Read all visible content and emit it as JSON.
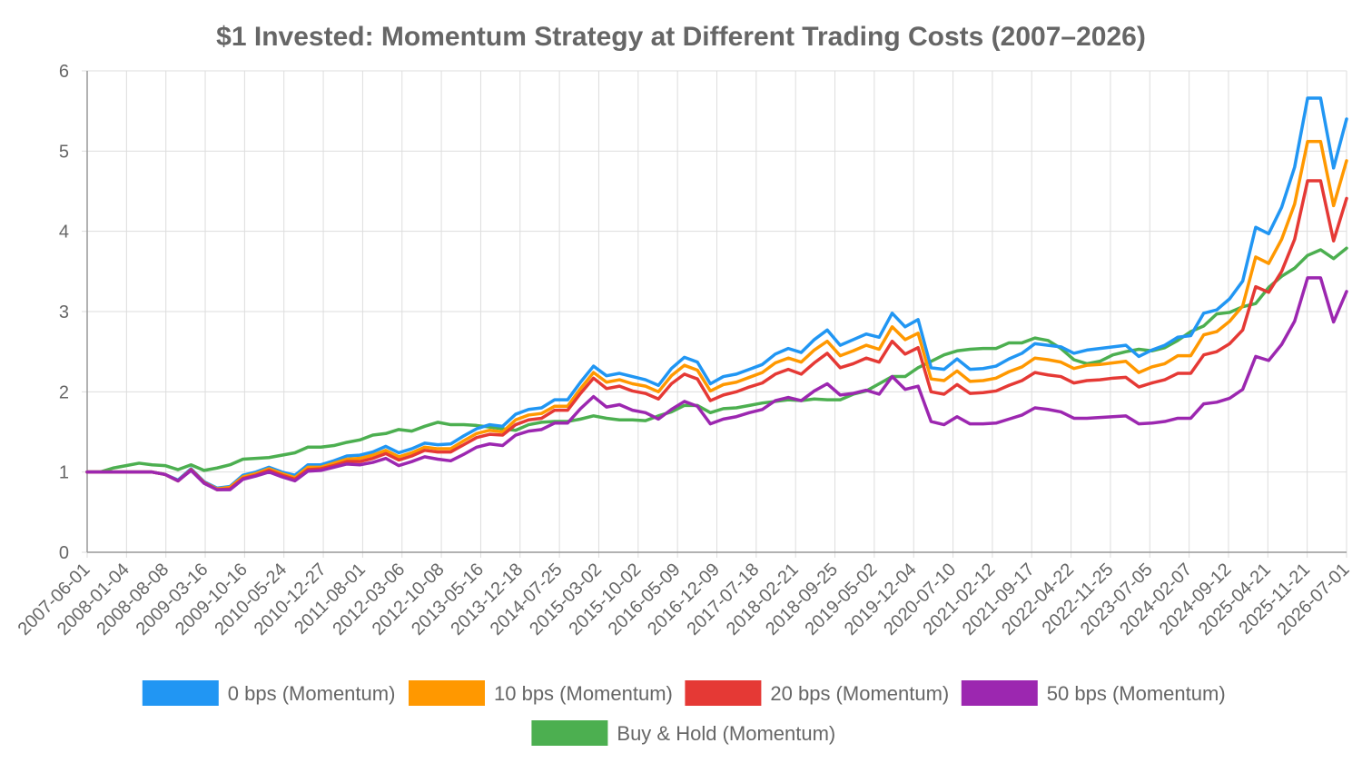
{
  "chart_data": {
    "type": "line",
    "title": "$1 Invested: Momentum Strategy at Different Trading Costs (2007–2026)",
    "xlabel": "",
    "ylabel": "",
    "ylim": [
      0,
      6
    ],
    "yticks": [
      "0",
      "1",
      "2",
      "3",
      "4",
      "5",
      "6"
    ],
    "grid": true,
    "legend_position": "bottom",
    "xlabels": [
      "2007-06-01",
      "2008-01-04",
      "2008-08-08",
      "2009-03-16",
      "2009-10-16",
      "2010-05-24",
      "2010-12-27",
      "2011-08-01",
      "2012-03-06",
      "2012-10-08",
      "2013-05-16",
      "2013-12-18",
      "2014-07-25",
      "2015-03-02",
      "2015-10-02",
      "2016-05-09",
      "2016-12-09",
      "2017-07-18",
      "2018-02-21",
      "2018-09-25",
      "2019-05-02",
      "2019-12-04",
      "2020-07-10",
      "2021-02-12",
      "2021-09-17",
      "2022-04-22",
      "2022-11-25",
      "2023-07-05",
      "2024-02-07",
      "2024-09-12",
      "2025-04-21",
      "2025-11-21",
      "2026-07-01"
    ],
    "series": [
      {
        "name": "0 bps (Momentum)",
        "color": "#2196F3",
        "values": [
          1.0,
          1.0,
          1.0,
          1.0,
          1.0,
          1.0,
          0.97,
          0.9,
          1.04,
          0.88,
          0.8,
          0.82,
          0.96,
          1.0,
          1.06,
          1.0,
          0.96,
          1.09,
          1.09,
          1.14,
          1.2,
          1.21,
          1.25,
          1.32,
          1.24,
          1.29,
          1.36,
          1.34,
          1.35,
          1.45,
          1.54,
          1.59,
          1.57,
          1.72,
          1.78,
          1.8,
          1.9,
          1.9,
          2.12,
          2.32,
          2.2,
          2.23,
          2.19,
          2.15,
          2.08,
          2.29,
          2.43,
          2.37,
          2.1,
          2.19,
          2.22,
          2.28,
          2.34,
          2.47,
          2.54,
          2.49,
          2.65,
          2.77,
          2.58,
          2.65,
          2.72,
          2.68,
          2.98,
          2.81,
          2.9,
          2.3,
          2.28,
          2.41,
          2.28,
          2.29,
          2.32,
          2.41,
          2.48,
          2.6,
          2.58,
          2.56,
          2.48,
          2.52,
          2.54,
          2.56,
          2.58,
          2.44,
          2.52,
          2.58,
          2.68,
          2.7,
          2.98,
          3.02,
          3.16,
          3.38,
          4.05,
          3.97,
          4.3,
          4.8,
          5.66,
          5.66,
          4.79,
          5.4
        ]
      },
      {
        "name": "10 bps (Momentum)",
        "color": "#FF9800",
        "values": [
          1.0,
          1.0,
          1.0,
          1.0,
          1.0,
          1.0,
          0.97,
          0.89,
          1.03,
          0.87,
          0.79,
          0.81,
          0.94,
          0.98,
          1.04,
          0.98,
          0.93,
          1.06,
          1.06,
          1.11,
          1.16,
          1.17,
          1.21,
          1.27,
          1.19,
          1.24,
          1.31,
          1.29,
          1.29,
          1.39,
          1.48,
          1.52,
          1.5,
          1.65,
          1.71,
          1.73,
          1.82,
          1.82,
          2.04,
          2.24,
          2.12,
          2.15,
          2.1,
          2.07,
          2.0,
          2.2,
          2.33,
          2.27,
          2.01,
          2.09,
          2.12,
          2.18,
          2.24,
          2.36,
          2.42,
          2.37,
          2.52,
          2.63,
          2.45,
          2.51,
          2.58,
          2.53,
          2.81,
          2.65,
          2.73,
          2.16,
          2.14,
          2.26,
          2.13,
          2.14,
          2.17,
          2.25,
          2.31,
          2.42,
          2.4,
          2.37,
          2.29,
          2.33,
          2.34,
          2.36,
          2.38,
          2.24,
          2.31,
          2.35,
          2.45,
          2.45,
          2.71,
          2.75,
          2.88,
          3.07,
          3.68,
          3.6,
          3.9,
          4.34,
          5.12,
          5.12,
          4.32,
          4.88
        ]
      },
      {
        "name": "20 bps (Momentum)",
        "color": "#E53935",
        "values": [
          1.0,
          1.0,
          1.0,
          1.0,
          1.0,
          1.0,
          0.97,
          0.89,
          1.03,
          0.87,
          0.78,
          0.79,
          0.92,
          0.96,
          1.02,
          0.96,
          0.91,
          1.03,
          1.04,
          1.08,
          1.13,
          1.13,
          1.17,
          1.23,
          1.15,
          1.2,
          1.27,
          1.25,
          1.25,
          1.34,
          1.43,
          1.47,
          1.46,
          1.59,
          1.65,
          1.67,
          1.77,
          1.77,
          1.98,
          2.17,
          2.04,
          2.07,
          2.01,
          1.98,
          1.91,
          2.1,
          2.22,
          2.16,
          1.89,
          1.96,
          2.0,
          2.06,
          2.11,
          2.22,
          2.28,
          2.22,
          2.36,
          2.48,
          2.3,
          2.35,
          2.42,
          2.37,
          2.63,
          2.47,
          2.55,
          2.0,
          1.97,
          2.09,
          1.98,
          1.99,
          2.01,
          2.08,
          2.14,
          2.24,
          2.21,
          2.19,
          2.11,
          2.14,
          2.15,
          2.17,
          2.18,
          2.06,
          2.11,
          2.15,
          2.23,
          2.23,
          2.46,
          2.5,
          2.6,
          2.77,
          3.31,
          3.24,
          3.5,
          3.9,
          4.63,
          4.63,
          3.88,
          4.41
        ]
      },
      {
        "name": "50 bps (Momentum)",
        "color": "#9C27B0",
        "values": [
          1.0,
          1.0,
          1.0,
          1.0,
          1.0,
          1.0,
          0.97,
          0.89,
          1.02,
          0.86,
          0.78,
          0.78,
          0.91,
          0.95,
          1.0,
          0.94,
          0.89,
          1.01,
          1.02,
          1.06,
          1.1,
          1.09,
          1.12,
          1.17,
          1.08,
          1.13,
          1.19,
          1.16,
          1.14,
          1.22,
          1.31,
          1.35,
          1.33,
          1.46,
          1.51,
          1.53,
          1.61,
          1.61,
          1.79,
          1.94,
          1.81,
          1.84,
          1.77,
          1.74,
          1.66,
          1.78,
          1.88,
          1.82,
          1.6,
          1.66,
          1.69,
          1.74,
          1.78,
          1.89,
          1.93,
          1.89,
          2.01,
          2.1,
          1.96,
          1.98,
          2.02,
          1.97,
          2.19,
          2.03,
          2.07,
          1.63,
          1.59,
          1.69,
          1.6,
          1.6,
          1.61,
          1.66,
          1.71,
          1.8,
          1.78,
          1.75,
          1.67,
          1.67,
          1.68,
          1.69,
          1.7,
          1.6,
          1.61,
          1.63,
          1.67,
          1.67,
          1.85,
          1.87,
          1.92,
          2.03,
          2.44,
          2.39,
          2.59,
          2.88,
          3.42,
          3.42,
          2.87,
          3.25
        ]
      },
      {
        "name": "Buy & Hold (Momentum)",
        "color": "#4CAF50",
        "values": [
          1.0,
          1.0,
          1.05,
          1.08,
          1.11,
          1.09,
          1.08,
          1.03,
          1.09,
          1.02,
          1.05,
          1.09,
          1.16,
          1.17,
          1.18,
          1.21,
          1.24,
          1.31,
          1.31,
          1.33,
          1.37,
          1.4,
          1.46,
          1.48,
          1.53,
          1.51,
          1.57,
          1.62,
          1.59,
          1.59,
          1.58,
          1.56,
          1.54,
          1.52,
          1.59,
          1.62,
          1.63,
          1.63,
          1.66,
          1.7,
          1.67,
          1.65,
          1.65,
          1.64,
          1.7,
          1.75,
          1.83,
          1.83,
          1.74,
          1.79,
          1.8,
          1.83,
          1.86,
          1.88,
          1.9,
          1.89,
          1.91,
          1.9,
          1.9,
          1.97,
          2.01,
          2.1,
          2.19,
          2.19,
          2.3,
          2.38,
          2.46,
          2.51,
          2.53,
          2.54,
          2.54,
          2.61,
          2.61,
          2.67,
          2.64,
          2.54,
          2.4,
          2.35,
          2.38,
          2.46,
          2.5,
          2.53,
          2.51,
          2.55,
          2.64,
          2.75,
          2.82,
          2.97,
          2.99,
          3.06,
          3.1,
          3.3,
          3.44,
          3.54,
          3.7,
          3.77,
          3.66,
          3.79
        ]
      }
    ]
  }
}
